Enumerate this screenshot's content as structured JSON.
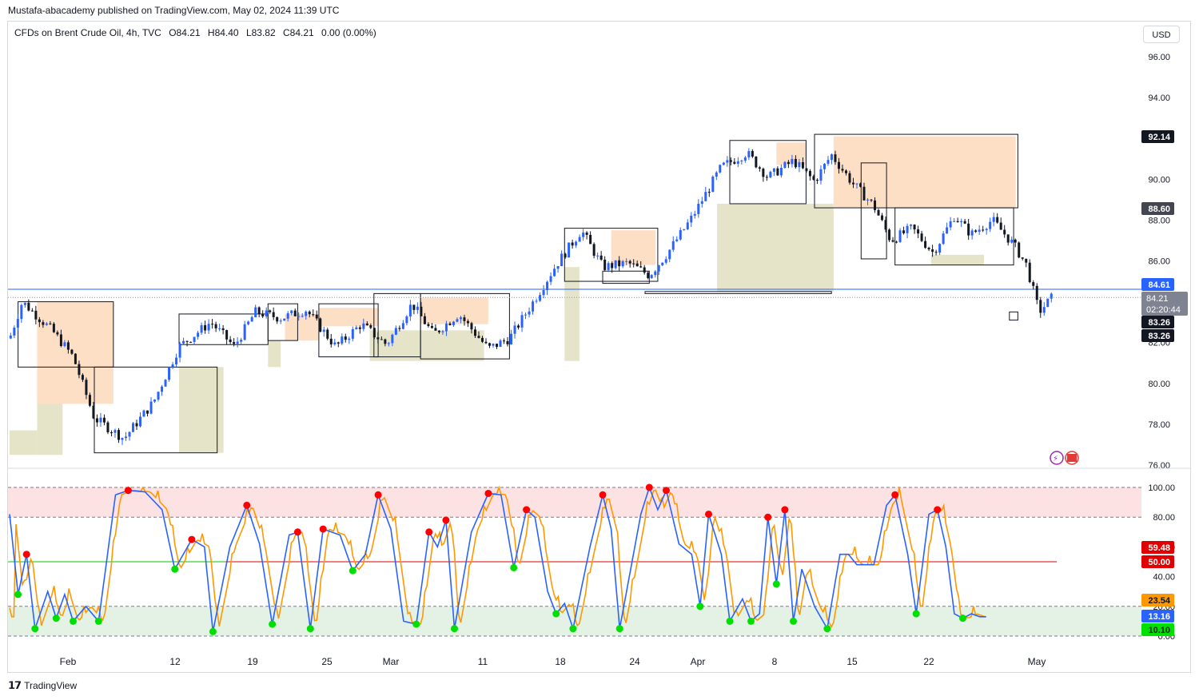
{
  "header": {
    "published": "Mustafa-abacademy published on TradingView.com, May 02, 2024 11:39 UTC"
  },
  "legend": {
    "symbol": "CFDs on Brent Crude Oil, 4h, TVC",
    "open": "O84.21",
    "high": "H84.40",
    "low": "L83.82",
    "close": "C84.21",
    "change": "0.00 (0.00%)"
  },
  "currency_button": "USD",
  "footer": {
    "brand": "TradingView"
  },
  "colors": {
    "up_candle": "#2962ff",
    "down_candle": "#131722",
    "demand_zone": "#e6e4c8",
    "supply_zone": "#fddfc6",
    "k_line": "#2962ff",
    "d_line": "#ff9800",
    "overbought_band": "#fde2e4",
    "oversold_band": "#e3f2e4",
    "sell_dot": "#ff0000",
    "buy_dot": "#00e000",
    "level_line": "#2962ff"
  },
  "chart_data": [
    {
      "type": "candlestick",
      "title": "CFDs on Brent Crude Oil, 4h, TVC",
      "ylim": [
        76.0,
        97.0
      ],
      "y_ticks": [
        "96.00",
        "94.00",
        "92.00",
        "90.00",
        "88.00",
        "86.00",
        "84.00",
        "82.00",
        "80.00",
        "78.00",
        "76.00"
      ],
      "x_ticks": [
        "Feb",
        "12",
        "19",
        "25",
        "Mar",
        "11",
        "18",
        "24",
        "Apr",
        "8",
        "15",
        "22",
        "May"
      ],
      "price_anchors": [
        {
          "x": 0.0,
          "y": 82.2
        },
        {
          "x": 0.6,
          "y": 84.0
        },
        {
          "x": 2.0,
          "y": 82.6
        },
        {
          "x": 3.0,
          "y": 81.3
        },
        {
          "x": 4.0,
          "y": 78.3
        },
        {
          "x": 5.4,
          "y": 77.3
        },
        {
          "x": 6.8,
          "y": 79.1
        },
        {
          "x": 8.0,
          "y": 81.8
        },
        {
          "x": 9.5,
          "y": 83.0
        },
        {
          "x": 10.6,
          "y": 81.8
        },
        {
          "x": 11.6,
          "y": 83.5
        },
        {
          "x": 12.8,
          "y": 83.2
        },
        {
          "x": 14.0,
          "y": 83.6
        },
        {
          "x": 15.4,
          "y": 81.8
        },
        {
          "x": 16.6,
          "y": 82.9
        },
        {
          "x": 17.8,
          "y": 81.9
        },
        {
          "x": 19.0,
          "y": 83.9
        },
        {
          "x": 20.0,
          "y": 82.4
        },
        {
          "x": 21.2,
          "y": 83.4
        },
        {
          "x": 22.6,
          "y": 81.7
        },
        {
          "x": 23.6,
          "y": 82.2
        },
        {
          "x": 24.6,
          "y": 83.8
        },
        {
          "x": 25.8,
          "y": 85.8
        },
        {
          "x": 27.0,
          "y": 87.5
        },
        {
          "x": 28.0,
          "y": 85.7
        },
        {
          "x": 29.2,
          "y": 85.9
        },
        {
          "x": 30.2,
          "y": 85.3
        },
        {
          "x": 31.0,
          "y": 86.3
        },
        {
          "x": 32.2,
          "y": 88.1
        },
        {
          "x": 33.6,
          "y": 90.6
        },
        {
          "x": 34.8,
          "y": 91.3
        },
        {
          "x": 35.8,
          "y": 90.1
        },
        {
          "x": 37.0,
          "y": 90.9
        },
        {
          "x": 38.0,
          "y": 89.9
        },
        {
          "x": 38.8,
          "y": 91.2
        },
        {
          "x": 39.8,
          "y": 89.8
        },
        {
          "x": 40.8,
          "y": 88.7
        },
        {
          "x": 41.6,
          "y": 87.0
        },
        {
          "x": 42.6,
          "y": 87.6
        },
        {
          "x": 43.6,
          "y": 86.4
        },
        {
          "x": 44.6,
          "y": 88.2
        },
        {
          "x": 45.4,
          "y": 87.3
        },
        {
          "x": 46.4,
          "y": 88.0
        },
        {
          "x": 47.4,
          "y": 86.8
        },
        {
          "x": 48.0,
          "y": 85.8
        },
        {
          "x": 48.6,
          "y": 83.5
        },
        {
          "x": 49.2,
          "y": 84.2
        }
      ],
      "current_price": "84.21",
      "countdown": "02:20:44",
      "price_labels": [
        "92.14",
        "88.60",
        "84.61",
        "83.26",
        "83.26"
      ],
      "demand_zones": [
        {
          "x0": 0.0,
          "x1": 1.3,
          "top": 77.7,
          "bottom": 76.5
        },
        {
          "x0": 1.3,
          "x1": 2.5,
          "top": 80.8,
          "bottom": 76.5
        },
        {
          "x0": 8.0,
          "x1": 10.1,
          "top": 80.8,
          "bottom": 76.6
        },
        {
          "x0": 12.2,
          "x1": 12.8,
          "top": 82.1,
          "bottom": 80.8
        },
        {
          "x0": 17.0,
          "x1": 22.4,
          "top": 82.6,
          "bottom": 81.1
        },
        {
          "x0": 26.2,
          "x1": 26.9,
          "top": 85.7,
          "bottom": 81.1
        },
        {
          "x0": 33.4,
          "x1": 38.9,
          "top": 88.8,
          "bottom": 84.5
        },
        {
          "x0": 43.5,
          "x1": 46.0,
          "top": 86.3,
          "bottom": 85.8
        }
      ],
      "supply_zones": [
        {
          "x0": 1.3,
          "x1": 4.9,
          "top": 84.0,
          "bottom": 79.0
        },
        {
          "x0": 13.0,
          "x1": 14.6,
          "top": 83.4,
          "bottom": 82.1
        },
        {
          "x0": 14.6,
          "x1": 17.4,
          "top": 83.7,
          "bottom": 82.8
        },
        {
          "x0": 19.4,
          "x1": 22.6,
          "top": 84.2,
          "bottom": 82.9
        },
        {
          "x0": 28.4,
          "x1": 30.5,
          "top": 87.5,
          "bottom": 85.8
        },
        {
          "x0": 36.2,
          "x1": 37.6,
          "top": 91.8,
          "bottom": 90.7
        },
        {
          "x0": 38.9,
          "x1": 47.5,
          "top": 92.1,
          "bottom": 88.6
        }
      ],
      "box_outlines": [
        {
          "x0": 0.4,
          "x1": 4.9,
          "top": 84.0,
          "bottom": 80.8
        },
        {
          "x0": 4.0,
          "x1": 9.8,
          "top": 80.8,
          "bottom": 76.6
        },
        {
          "x0": 8.0,
          "x1": 12.2,
          "top": 83.4,
          "bottom": 81.9
        },
        {
          "x0": 12.2,
          "x1": 13.6,
          "top": 83.9,
          "bottom": 82.1
        },
        {
          "x0": 14.6,
          "x1": 17.4,
          "top": 83.9,
          "bottom": 81.3
        },
        {
          "x0": 17.2,
          "x1": 19.4,
          "top": 84.4,
          "bottom": 81.3
        },
        {
          "x0": 19.4,
          "x1": 23.6,
          "top": 84.4,
          "bottom": 81.2
        },
        {
          "x0": 26.2,
          "x1": 30.6,
          "top": 87.6,
          "bottom": 85.0
        },
        {
          "x0": 28.0,
          "x1": 30.2,
          "top": 85.5,
          "bottom": 84.9
        },
        {
          "x0": 30.0,
          "x1": 38.8,
          "top": 84.5,
          "bottom": 84.4
        },
        {
          "x0": 34.0,
          "x1": 37.6,
          "top": 91.9,
          "bottom": 88.8
        },
        {
          "x0": 38.0,
          "x1": 47.6,
          "top": 92.2,
          "bottom": 88.6
        },
        {
          "x0": 40.2,
          "x1": 41.4,
          "top": 90.8,
          "bottom": 86.1
        },
        {
          "x0": 41.8,
          "x1": 47.4,
          "top": 88.6,
          "bottom": 85.8
        },
        {
          "x0": 47.2,
          "x1": 47.6,
          "top": 83.5,
          "bottom": 83.1
        }
      ]
    },
    {
      "type": "line",
      "title": "Stochastic",
      "ylim": [
        0,
        100
      ],
      "y_ticks": [
        "100.00",
        "80.00",
        "60.00",
        "40.00",
        "20.00",
        "0.00"
      ],
      "upper_band": [
        80,
        100
      ],
      "lower_band": [
        0,
        20
      ],
      "mid_line": 50,
      "value_labels": [
        "59.48",
        "50.00",
        "23.54",
        "13.16",
        "10.10"
      ],
      "k_anchors": [
        {
          "x": 0.0,
          "y": 82
        },
        {
          "x": 0.4,
          "y": 28
        },
        {
          "x": 0.8,
          "y": 55
        },
        {
          "x": 1.2,
          "y": 5
        },
        {
          "x": 1.8,
          "y": 30
        },
        {
          "x": 2.2,
          "y": 12
        },
        {
          "x": 2.6,
          "y": 28
        },
        {
          "x": 3.0,
          "y": 10
        },
        {
          "x": 3.6,
          "y": 20
        },
        {
          "x": 4.2,
          "y": 10
        },
        {
          "x": 5.0,
          "y": 95
        },
        {
          "x": 5.6,
          "y": 98
        },
        {
          "x": 6.4,
          "y": 97
        },
        {
          "x": 7.2,
          "y": 85
        },
        {
          "x": 7.8,
          "y": 45
        },
        {
          "x": 8.6,
          "y": 65
        },
        {
          "x": 9.2,
          "y": 60
        },
        {
          "x": 9.6,
          "y": 3
        },
        {
          "x": 10.4,
          "y": 60
        },
        {
          "x": 11.2,
          "y": 88
        },
        {
          "x": 11.8,
          "y": 62
        },
        {
          "x": 12.4,
          "y": 8
        },
        {
          "x": 13.2,
          "y": 68
        },
        {
          "x": 13.6,
          "y": 70
        },
        {
          "x": 14.2,
          "y": 5
        },
        {
          "x": 14.8,
          "y": 72
        },
        {
          "x": 15.6,
          "y": 68
        },
        {
          "x": 16.2,
          "y": 44
        },
        {
          "x": 16.8,
          "y": 55
        },
        {
          "x": 17.4,
          "y": 95
        },
        {
          "x": 18.0,
          "y": 72
        },
        {
          "x": 18.6,
          "y": 10
        },
        {
          "x": 19.2,
          "y": 8
        },
        {
          "x": 19.8,
          "y": 70
        },
        {
          "x": 20.2,
          "y": 60
        },
        {
          "x": 20.6,
          "y": 78
        },
        {
          "x": 21.0,
          "y": 5
        },
        {
          "x": 21.8,
          "y": 70
        },
        {
          "x": 22.6,
          "y": 96
        },
        {
          "x": 23.2,
          "y": 95
        },
        {
          "x": 23.8,
          "y": 46
        },
        {
          "x": 24.4,
          "y": 85
        },
        {
          "x": 24.8,
          "y": 80
        },
        {
          "x": 25.4,
          "y": 30
        },
        {
          "x": 25.8,
          "y": 15
        },
        {
          "x": 26.2,
          "y": 22
        },
        {
          "x": 26.6,
          "y": 5
        },
        {
          "x": 27.4,
          "y": 60
        },
        {
          "x": 28.0,
          "y": 95
        },
        {
          "x": 28.4,
          "y": 72
        },
        {
          "x": 28.8,
          "y": 5
        },
        {
          "x": 29.8,
          "y": 82
        },
        {
          "x": 30.2,
          "y": 100
        },
        {
          "x": 30.6,
          "y": 85
        },
        {
          "x": 31.0,
          "y": 98
        },
        {
          "x": 31.6,
          "y": 62
        },
        {
          "x": 32.2,
          "y": 55
        },
        {
          "x": 32.6,
          "y": 20
        },
        {
          "x": 33.0,
          "y": 82
        },
        {
          "x": 33.6,
          "y": 55
        },
        {
          "x": 34.0,
          "y": 10
        },
        {
          "x": 34.6,
          "y": 25
        },
        {
          "x": 35.0,
          "y": 10
        },
        {
          "x": 35.4,
          "y": 15
        },
        {
          "x": 35.8,
          "y": 80
        },
        {
          "x": 36.2,
          "y": 35
        },
        {
          "x": 36.6,
          "y": 85
        },
        {
          "x": 37.0,
          "y": 10
        },
        {
          "x": 37.4,
          "y": 45
        },
        {
          "x": 38.0,
          "y": 20
        },
        {
          "x": 38.6,
          "y": 5
        },
        {
          "x": 39.2,
          "y": 55
        },
        {
          "x": 39.6,
          "y": 55
        },
        {
          "x": 40.0,
          "y": 48
        },
        {
          "x": 40.4,
          "y": 48
        },
        {
          "x": 40.8,
          "y": 48
        },
        {
          "x": 41.4,
          "y": 88
        },
        {
          "x": 41.8,
          "y": 95
        },
        {
          "x": 42.4,
          "y": 55
        },
        {
          "x": 42.8,
          "y": 15
        },
        {
          "x": 43.4,
          "y": 82
        },
        {
          "x": 43.8,
          "y": 85
        },
        {
          "x": 44.2,
          "y": 60
        },
        {
          "x": 44.6,
          "y": 15
        },
        {
          "x": 45.0,
          "y": 12
        },
        {
          "x": 45.4,
          "y": 15
        },
        {
          "x": 45.8,
          "y": 13
        },
        {
          "x": 46.2,
          "y": 13
        }
      ]
    }
  ]
}
